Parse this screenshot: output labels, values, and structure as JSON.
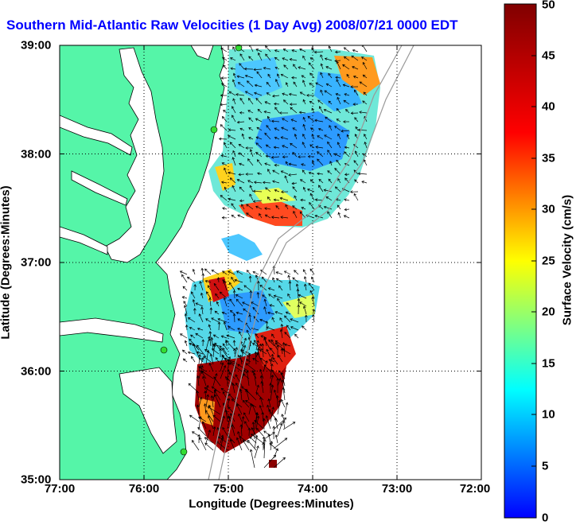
{
  "title": "Southern Mid-Atlantic Raw Velocities (1 Day Avg) 2008/07/21 0000 EDT",
  "map": {
    "x_label": "Longitude (Degrees:Minutes)",
    "y_label": "Latitude (Degrees:Minutes)",
    "x_ticks": [
      "77:00",
      "76:00",
      "75:00",
      "74:00",
      "73:00",
      "72:00"
    ],
    "y_ticks": [
      "39:00",
      "38:00",
      "37:00",
      "36:00",
      "35:00"
    ],
    "lon_range": [
      -77,
      -72
    ],
    "lat_range": [
      35,
      39
    ],
    "land_color": "#55f5a8",
    "ocean_color": "#ffffff",
    "station_color": "#33dd33"
  },
  "colorbar": {
    "label": "Surface Velocity (cm/s)",
    "ticks": [
      "0",
      "5",
      "10",
      "15",
      "20",
      "25",
      "30",
      "35",
      "40",
      "45",
      "50"
    ],
    "range": [
      0,
      50
    ]
  }
}
